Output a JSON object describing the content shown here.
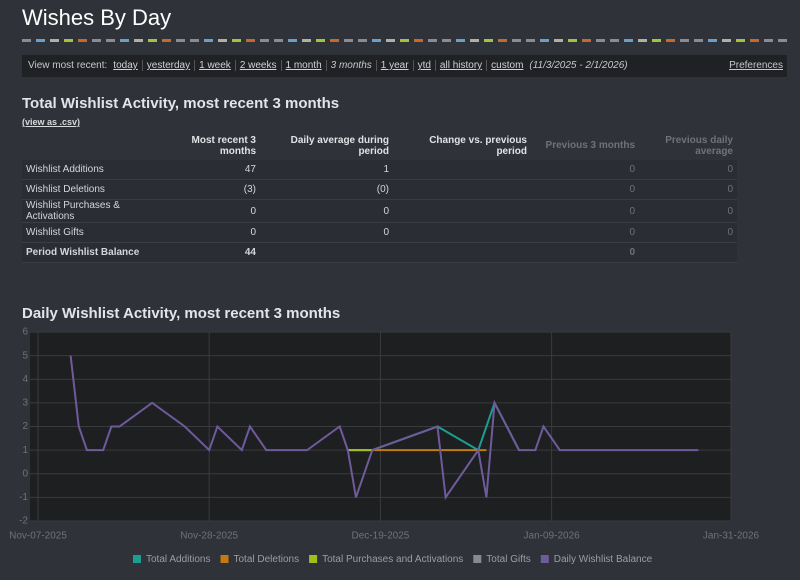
{
  "header": {
    "title": "Wishes By Day"
  },
  "nav": {
    "label": "View most recent:",
    "links": [
      "today",
      "yesterday",
      "1 week",
      "2 weeks",
      "1 month",
      "3 months",
      "1 year",
      "ytd",
      "all history",
      "custom"
    ],
    "range": "(11/3/2025 - 2/1/2026)",
    "preferences": "Preferences"
  },
  "summary": {
    "title": "Total Wishlist Activity, most recent 3 months",
    "csv": "(view as .csv)",
    "columns": [
      "Most recent 3 months",
      "Daily average during period",
      "Change vs. previous period",
      "Previous 3 months",
      "Previous daily average"
    ],
    "rows": [
      {
        "label": "Wishlist Additions",
        "cells": [
          47,
          1,
          null,
          0,
          0
        ]
      },
      {
        "label": "Wishlist Deletions",
        "cells": [
          "(3)",
          "(0)",
          null,
          0,
          0
        ]
      },
      {
        "label": "Wishlist Purchases & Activations",
        "cells": [
          0,
          0,
          null,
          0,
          0
        ]
      },
      {
        "label": "Wishlist Gifts",
        "cells": [
          0,
          0,
          null,
          0,
          0
        ]
      },
      {
        "label": "Period Wishlist Balance",
        "cells": [
          44,
          null,
          null,
          0,
          null
        ]
      }
    ]
  },
  "chart_data": {
    "type": "line",
    "title": "Daily Wishlist Activity, most recent 3 months",
    "xlim": [
      "Nov-07-2025",
      "Jan-31-2026"
    ],
    "xticks": [
      "Nov-07-2025",
      "Nov-28-2025",
      "Dec-19-2025",
      "Jan-09-2026",
      "Jan-31-2026"
    ],
    "ylim": [
      -2,
      6
    ],
    "yticks": [
      -2,
      -1,
      0,
      1,
      2,
      3,
      4,
      5,
      6
    ],
    "grid": true,
    "series": [
      {
        "name": "Total Additions",
        "color": "#1b9e8e",
        "x": [
          "Dec-15-2025",
          "Dec-18-2025",
          "Dec-26-2025",
          "Dec-31-2025",
          "Jan-02-2026",
          "Jan-05-2026"
        ],
        "values": [
          1,
          1,
          2,
          1,
          3,
          1
        ]
      },
      {
        "name": "Total Deletions",
        "color": "#c27a12",
        "x": [
          "Dec-15-2025",
          "Jan-01-2026"
        ],
        "values": [
          1,
          1
        ]
      },
      {
        "name": "Total Purchases and Activations",
        "color": "#9fbf1f",
        "x": [
          "Dec-15-2025",
          "Dec-18-2025"
        ],
        "values": [
          1,
          1
        ]
      },
      {
        "name": "Total Gifts",
        "color": "#8a8a8a",
        "x": [],
        "values": []
      },
      {
        "name": "Daily Wishlist Balance",
        "color": "#6f5a9c",
        "x": [
          "Nov-11-2025",
          "Nov-12-2025",
          "Nov-13-2025",
          "Nov-15-2025",
          "Nov-16-2025",
          "Nov-17-2025",
          "Nov-21-2025",
          "Nov-25-2025",
          "Nov-28-2025",
          "Nov-29-2025",
          "Dec-02-2025",
          "Dec-03-2025",
          "Dec-05-2025",
          "Dec-10-2025",
          "Dec-14-2025",
          "Dec-15-2025",
          "Dec-16-2025",
          "Dec-18-2025",
          "Dec-26-2025",
          "Dec-27-2025",
          "Dec-31-2025",
          "Jan-01-2026",
          "Jan-02-2026",
          "Jan-05-2026",
          "Jan-07-2026",
          "Jan-08-2026",
          "Jan-10-2026",
          "Jan-27-2026"
        ],
        "values": [
          5,
          2,
          1,
          1,
          2,
          2,
          3,
          2,
          1,
          2,
          1,
          2,
          1,
          1,
          2,
          1,
          -1,
          1,
          2,
          -1,
          1,
          -1,
          3,
          1,
          1,
          2,
          1,
          1
        ]
      }
    ]
  }
}
